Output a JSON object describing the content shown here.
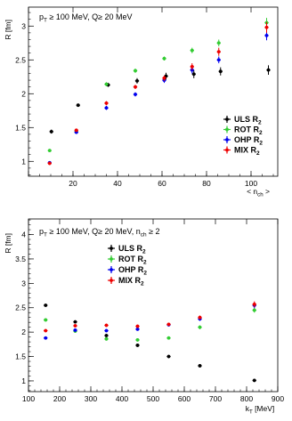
{
  "chart_data": [
    {
      "type": "scatter",
      "annotation": "pₜ ≥ 100 MeV, Q ≥ 20 MeV",
      "annotation_parts": {
        "p": "p",
        "sub": "T",
        "rest": " ≥ 100 MeV, Q≥ 20 MeV"
      },
      "ylabel": "R [fm]",
      "xlabel": "< n_ch >",
      "xlabel_parts": {
        "pre": "< n",
        "sub": "ch",
        "post": " >"
      },
      "xlim": [
        0,
        112
      ],
      "ylim": [
        0.78,
        3.28
      ],
      "x_ticks": [
        0,
        20,
        40,
        60,
        80,
        100
      ],
      "y_ticks": [
        1,
        1.5,
        2,
        2.5,
        3
      ],
      "x_tick_labels": [
        "20",
        "40",
        "60",
        "80",
        "100"
      ],
      "y_tick_labels": [
        "1",
        "1.5",
        "2",
        "2.5",
        "3"
      ],
      "legend_placement": "bottom-right",
      "series": [
        {
          "name": "ULS R₂",
          "label_main": "ULS R",
          "label_sub": "2",
          "color": "#000000",
          "x": [
            9.5,
            21.5,
            35,
            48,
            61,
            73.5,
            85.5,
            107
          ],
          "y": [
            1.44,
            1.83,
            2.13,
            2.19,
            2.26,
            2.29,
            2.33,
            2.35
          ],
          "yerr": [
            0.03,
            0.02,
            0.03,
            0.04,
            0.05,
            0.06,
            0.06,
            0.07
          ]
        },
        {
          "name": "ROT R₂",
          "label_main": "ROT R",
          "label_sub": "2",
          "color": "#33cc33",
          "x": [
            9.5,
            21.5,
            35,
            48,
            61,
            73.5,
            85.5,
            107
          ],
          "y": [
            1.16,
            1.44,
            2.14,
            2.34,
            2.52,
            2.64,
            2.75,
            3.05
          ],
          "yerr": [
            0.02,
            0.02,
            0.03,
            0.03,
            0.03,
            0.04,
            0.05,
            0.07
          ]
        },
        {
          "name": "OHP R₂",
          "label_main": "OHP R",
          "label_sub": "2",
          "color": "#0000ee",
          "x": [
            9.5,
            21.5,
            35,
            48,
            61,
            73.5,
            85.5,
            107
          ],
          "y": [
            0.98,
            1.43,
            1.79,
            1.99,
            2.2,
            2.35,
            2.5,
            2.86
          ],
          "yerr": [
            0.02,
            0.02,
            0.03,
            0.03,
            0.04,
            0.05,
            0.05,
            0.07
          ]
        },
        {
          "name": "MIX R₂",
          "label_main": "MIX R",
          "label_sub": "2",
          "color": "#ee0000",
          "x": [
            9.5,
            21.5,
            35,
            48,
            61,
            73.5,
            85.5,
            107
          ],
          "y": [
            0.97,
            1.46,
            1.86,
            2.1,
            2.23,
            2.4,
            2.62,
            2.98
          ],
          "yerr": [
            0.02,
            0.02,
            0.03,
            0.03,
            0.04,
            0.05,
            0.06,
            0.08
          ]
        }
      ]
    },
    {
      "type": "scatter",
      "annotation": "pₜ ≥ 100 MeV, Q ≥ 20 MeV, n_ch ≥ 2",
      "annotation_parts": {
        "p": "p",
        "sub": "T",
        "rest": " ≥ 100 MeV, Q≥ 20 MeV, n",
        "sub2": "ch",
        "rest2": " ≥ 2"
      },
      "ylabel": "R [fm]",
      "xlabel": "k_T [MeV]",
      "xlabel_parts": {
        "pre": "k",
        "sub": "T",
        "post": " [MeV]"
      },
      "xlim": [
        100,
        900
      ],
      "ylim": [
        0.78,
        4.32
      ],
      "x_ticks": [
        100,
        200,
        300,
        400,
        500,
        600,
        700,
        800,
        900
      ],
      "y_ticks": [
        1,
        1.5,
        2,
        2.5,
        3,
        3.5,
        4
      ],
      "x_tick_labels": [
        "100",
        "200",
        "300",
        "400",
        "500",
        "600",
        "700",
        "800",
        "900"
      ],
      "y_tick_labels": [
        "1",
        "1.5",
        "2",
        "2.5",
        "3",
        "3.5",
        "4"
      ],
      "legend_placement": "top-center",
      "series": [
        {
          "name": "ULS R₂",
          "label_main": "ULS R",
          "label_sub": "2",
          "color": "#000000",
          "x": [
            155,
            250,
            350,
            450,
            550,
            650,
            825
          ],
          "y": [
            2.55,
            2.21,
            1.93,
            1.73,
            1.5,
            1.31,
            1.01
          ],
          "yerr": [
            0.03,
            0.03,
            0.03,
            0.03,
            0.03,
            0.03,
            0.03
          ]
        },
        {
          "name": "ROT R₂",
          "label_main": "ROT R",
          "label_sub": "2",
          "color": "#33cc33",
          "x": [
            155,
            250,
            350,
            450,
            550,
            650,
            825
          ],
          "y": [
            2.25,
            2.02,
            1.86,
            1.84,
            1.88,
            2.1,
            2.45
          ],
          "yerr": [
            0.03,
            0.03,
            0.03,
            0.03,
            0.03,
            0.04,
            0.05
          ]
        },
        {
          "name": "OHP R₂",
          "label_main": "OHP R",
          "label_sub": "2",
          "color": "#0000ee",
          "x": [
            155,
            250,
            350,
            450,
            550,
            650,
            825
          ],
          "y": [
            1.88,
            2.04,
            2.03,
            2.06,
            2.15,
            2.27,
            2.55
          ],
          "yerr": [
            0.03,
            0.03,
            0.03,
            0.03,
            0.03,
            0.04,
            0.06
          ]
        },
        {
          "name": "MIX R₂",
          "label_main": "MIX R",
          "label_sub": "2",
          "color": "#ee0000",
          "x": [
            155,
            250,
            350,
            450,
            550,
            650,
            825
          ],
          "y": [
            2.03,
            2.13,
            2.14,
            2.12,
            2.16,
            2.3,
            2.57
          ],
          "yerr": [
            0.03,
            0.03,
            0.03,
            0.03,
            0.03,
            0.04,
            0.06
          ]
        }
      ]
    }
  ]
}
